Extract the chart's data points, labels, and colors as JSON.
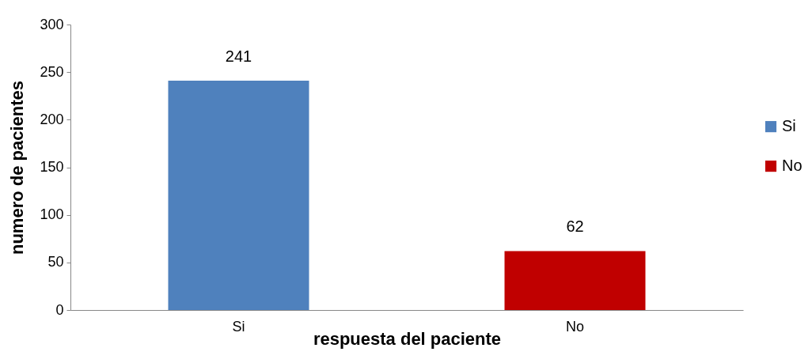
{
  "chart_data": {
    "type": "bar",
    "xlabel": "respuesta del paciente",
    "ylabel": "numero de pacientes",
    "categories": [
      "Si",
      "No"
    ],
    "series": [
      {
        "name": "Si",
        "color": "#4f81bd",
        "values": [
          241,
          null
        ]
      },
      {
        "name": "No",
        "color": "#c00000",
        "values": [
          null,
          62
        ]
      }
    ],
    "ylim": [
      0,
      300
    ],
    "yticks": [
      0,
      50,
      100,
      150,
      200,
      250,
      300
    ],
    "data_labels": true,
    "grid": false,
    "legend": "right"
  }
}
